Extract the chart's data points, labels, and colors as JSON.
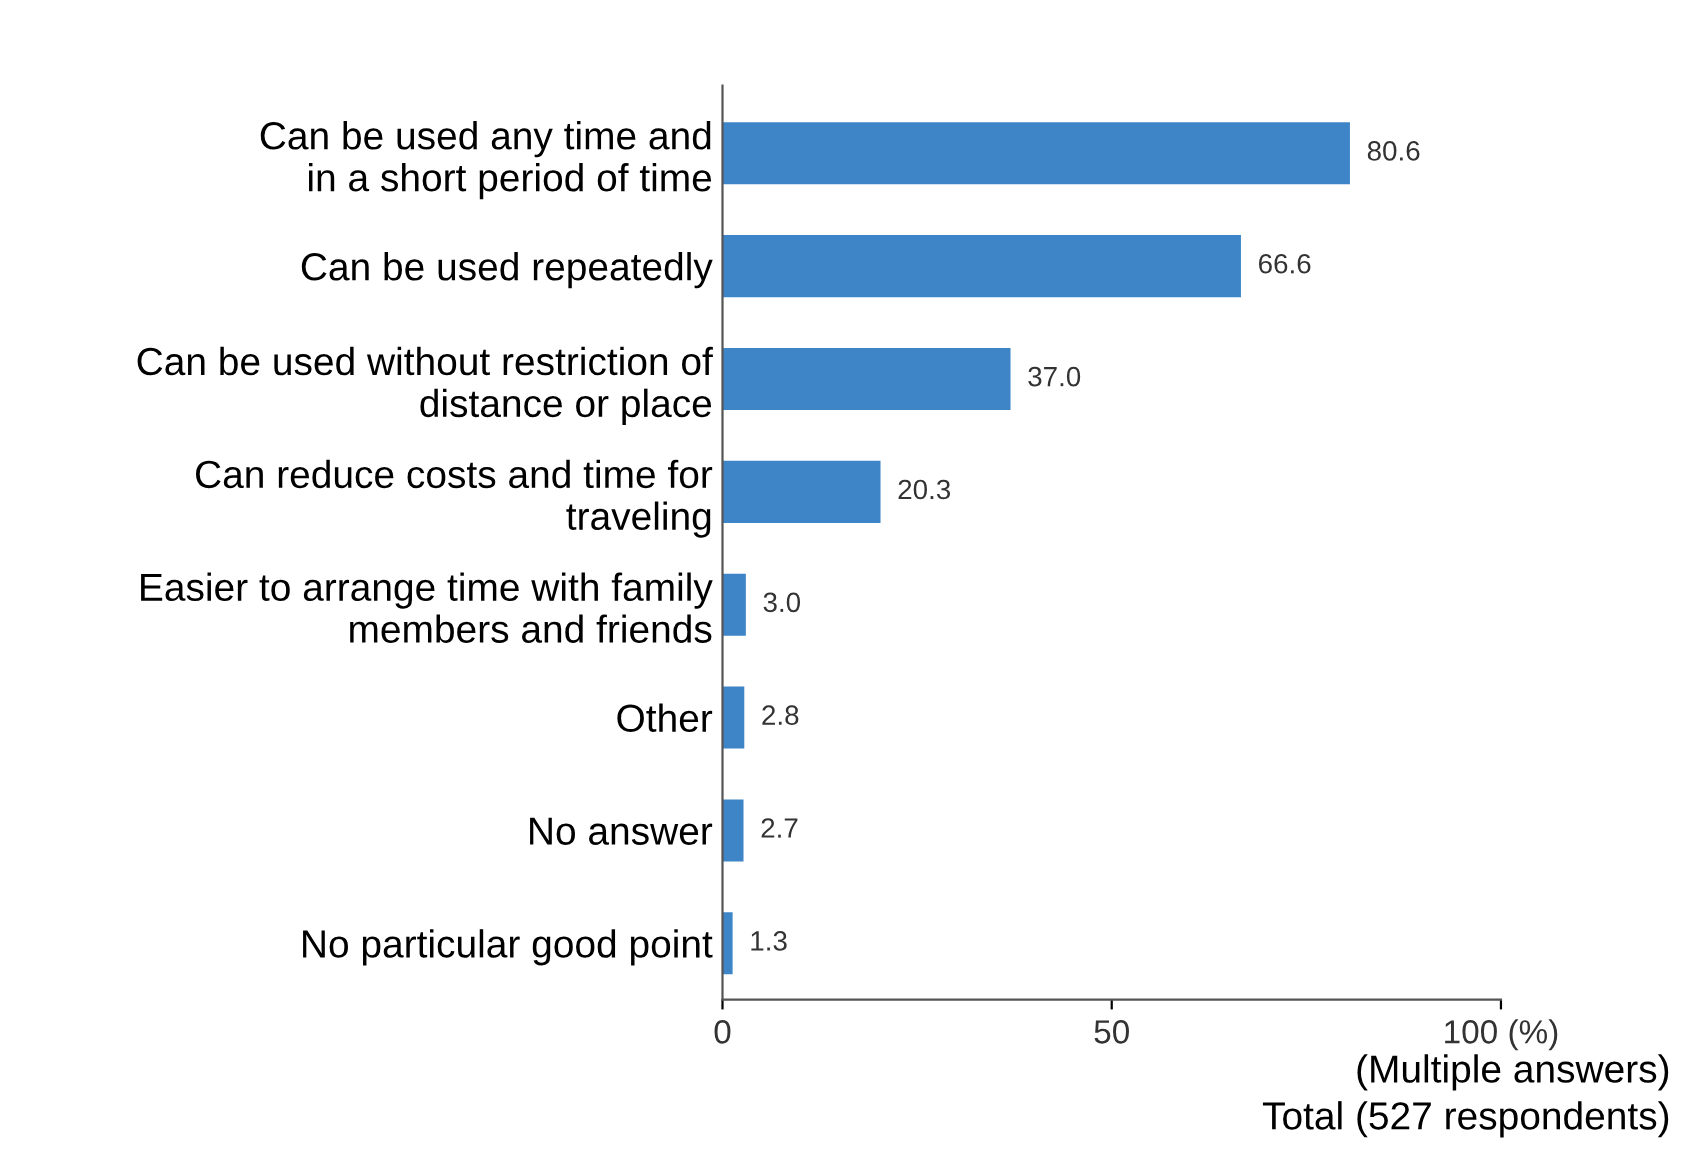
{
  "chart_data": {
    "type": "bar",
    "orientation": "horizontal",
    "categories": [
      "Can be used any time and\nin a short period of time",
      "Can be used repeatedly",
      "Can be used without restriction of\ndistance or place",
      "Can reduce costs and time for\ntraveling",
      "Easier to arrange time with family\nmembers and friends",
      "Other",
      "No answer",
      "No particular good point"
    ],
    "values": [
      80.6,
      66.6,
      37.0,
      20.3,
      3.0,
      2.8,
      2.7,
      1.3
    ],
    "value_labels": [
      "80.6",
      "66.6",
      "37.0",
      "20.3",
      "3.0",
      "2.8",
      "2.7",
      "1.3"
    ],
    "color": "#3d85c6",
    "xlim": [
      0,
      100
    ],
    "xticks": [
      0,
      50,
      {
        "value": 100,
        "label": "100 (%)"
      }
    ],
    "grid": false,
    "annotations": [
      "(Multiple answers)",
      "Total (527 respondents)"
    ]
  }
}
